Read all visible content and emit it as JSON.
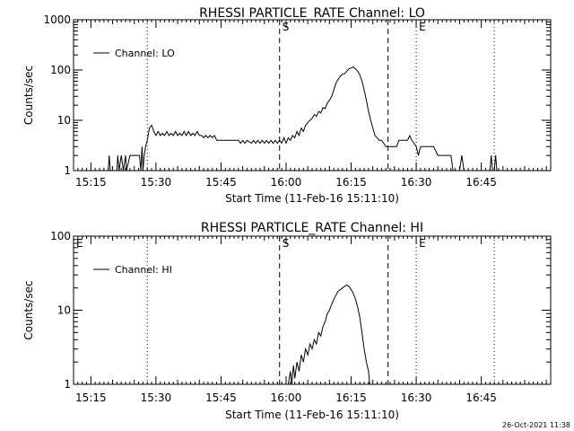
{
  "timestamp": "26-Oct-2021 11:38",
  "chart_data": [
    {
      "type": "line",
      "title": "RHESSI PARTICLE_RATE Channel: LO",
      "xlabel": "Start Time (11-Feb-16 15:11:10)",
      "ylabel": "Counts/sec",
      "yscale": "log",
      "ylim": [
        1,
        1000
      ],
      "yticks": [
        "1",
        "10",
        "100",
        "1000"
      ],
      "xlim_min": [
        0,
        110
      ],
      "xticks": [
        {
          "min": 4,
          "label": "15:15"
        },
        {
          "min": 19,
          "label": "15:30"
        },
        {
          "min": 34,
          "label": "15:45"
        },
        {
          "min": 49,
          "label": "16:00"
        },
        {
          "min": 64,
          "label": "16:15"
        },
        {
          "min": 79,
          "label": "16:30"
        },
        {
          "min": 94,
          "label": "16:45"
        }
      ],
      "markers": [
        {
          "min": 17,
          "style": "dotted",
          "label": ""
        },
        {
          "min": 47.5,
          "style": "dashed",
          "label": "S"
        },
        {
          "min": 72.5,
          "style": "dashed",
          "label": ""
        },
        {
          "min": 79,
          "style": "dotted",
          "label": "E"
        },
        {
          "min": 97,
          "style": "dotted",
          "label": ""
        }
      ],
      "legend": "Channel: LO",
      "grid": false,
      "series": [
        {
          "name": "Channel: LO",
          "points": [
            [
              8,
              1
            ],
            [
              8.2,
              2
            ],
            [
              8.5,
              1
            ],
            [
              10,
              1
            ],
            [
              10.2,
              2
            ],
            [
              10.5,
              1
            ],
            [
              11,
              2
            ],
            [
              11.5,
              1
            ],
            [
              12,
              2
            ],
            [
              12.2,
              1
            ],
            [
              13,
              2
            ],
            [
              14.5,
              2
            ],
            [
              15.2,
              2
            ],
            [
              15.5,
              1
            ],
            [
              15.8,
              3
            ],
            [
              16,
              1
            ],
            [
              16.3,
              2
            ],
            [
              16.6,
              3
            ],
            [
              17,
              4
            ],
            [
              17.5,
              7
            ],
            [
              18,
              8
            ],
            [
              18.5,
              6
            ],
            [
              19,
              5
            ],
            [
              19.5,
              6
            ],
            [
              20,
              5
            ],
            [
              20.5,
              5.5
            ],
            [
              21,
              5
            ],
            [
              21.5,
              6
            ],
            [
              22,
              5
            ],
            [
              22.5,
              5.5
            ],
            [
              23,
              5
            ],
            [
              23.5,
              6
            ],
            [
              24,
              5
            ],
            [
              24.5,
              5.5
            ],
            [
              25,
              5
            ],
            [
              25.5,
              6
            ],
            [
              26,
              5
            ],
            [
              26.5,
              6
            ],
            [
              27,
              5
            ],
            [
              27.5,
              5.5
            ],
            [
              28,
              5
            ],
            [
              28.5,
              6
            ],
            [
              29,
              5
            ],
            [
              29.5,
              5
            ],
            [
              30,
              4.5
            ],
            [
              30.5,
              5
            ],
            [
              31,
              4.5
            ],
            [
              31.5,
              5
            ],
            [
              32,
              4.5
            ],
            [
              32.5,
              5
            ],
            [
              33,
              4
            ],
            [
              34,
              4
            ],
            [
              35,
              4
            ],
            [
              36,
              4
            ],
            [
              37,
              4
            ],
            [
              38,
              4
            ],
            [
              38.5,
              3.5
            ],
            [
              39,
              4
            ],
            [
              39.5,
              3.5
            ],
            [
              40,
              4
            ],
            [
              41,
              3.5
            ],
            [
              41.5,
              4
            ],
            [
              42,
              3.5
            ],
            [
              42.5,
              4
            ],
            [
              43,
              3.5
            ],
            [
              43.5,
              4
            ],
            [
              44,
              3.5
            ],
            [
              44.5,
              4
            ],
            [
              45,
              3.5
            ],
            [
              45.5,
              4
            ],
            [
              46,
              3.5
            ],
            [
              46.5,
              4
            ],
            [
              47,
              3.5
            ],
            [
              47.5,
              4
            ],
            [
              48,
              3.5
            ],
            [
              48.5,
              4.5
            ],
            [
              49,
              3.5
            ],
            [
              49.5,
              4.5
            ],
            [
              50,
              4
            ],
            [
              50.5,
              5
            ],
            [
              51,
              4.5
            ],
            [
              51.5,
              6
            ],
            [
              52,
              5
            ],
            [
              52.5,
              7
            ],
            [
              53,
              6
            ],
            [
              53.5,
              8
            ],
            [
              54,
              9
            ],
            [
              54.5,
              10
            ],
            [
              55,
              11
            ],
            [
              55.5,
              13
            ],
            [
              56,
              12
            ],
            [
              56.5,
              15
            ],
            [
              57,
              14
            ],
            [
              57.5,
              18
            ],
            [
              58,
              17
            ],
            [
              58.5,
              22
            ],
            [
              59,
              25
            ],
            [
              59.5,
              30
            ],
            [
              60,
              40
            ],
            [
              60.5,
              55
            ],
            [
              61,
              65
            ],
            [
              61.5,
              75
            ],
            [
              62,
              82
            ],
            [
              62.5,
              85
            ],
            [
              63,
              95
            ],
            [
              63.5,
              105
            ],
            [
              64,
              110
            ],
            [
              64.5,
              115
            ],
            [
              65,
              105
            ],
            [
              65.5,
              95
            ],
            [
              66,
              80
            ],
            [
              66.5,
              60
            ],
            [
              67,
              40
            ],
            [
              67.5,
              25
            ],
            [
              68,
              15
            ],
            [
              68.5,
              10
            ],
            [
              69,
              7
            ],
            [
              69.5,
              5
            ],
            [
              70,
              4.5
            ],
            [
              70.5,
              4
            ],
            [
              71,
              4
            ],
            [
              71.5,
              3.5
            ],
            [
              72,
              3
            ],
            [
              73,
              3
            ],
            [
              74,
              3
            ],
            [
              74.5,
              3
            ],
            [
              75,
              4
            ],
            [
              76,
              4
            ],
            [
              77,
              4
            ],
            [
              77.5,
              5
            ],
            [
              78,
              4
            ],
            [
              78.5,
              3.5
            ],
            [
              79,
              3
            ],
            [
              79.5,
              2
            ],
            [
              80,
              3
            ],
            [
              81,
              3
            ],
            [
              82,
              3
            ],
            [
              83,
              3
            ],
            [
              84,
              2
            ],
            [
              85,
              2
            ],
            [
              86,
              2
            ],
            [
              87,
              2
            ],
            [
              87.5,
              1
            ],
            [
              88,
              1
            ],
            [
              89,
              1
            ],
            [
              89.5,
              2
            ],
            [
              90,
              1
            ],
            [
              96,
              1
            ],
            [
              96.3,
              2
            ],
            [
              96.6,
              1
            ],
            [
              97,
              1
            ],
            [
              97.3,
              2
            ],
            [
              97.6,
              1
            ]
          ]
        }
      ]
    },
    {
      "type": "line",
      "title": "RHESSI PARTICLE_RATE Channel: HI",
      "xlabel": "Start Time (11-Feb-16 15:11:10)",
      "ylabel": "Counts/sec",
      "yscale": "log",
      "ylim": [
        1,
        100
      ],
      "yticks": [
        "1",
        "10",
        "100"
      ],
      "xlim_min": [
        0,
        110
      ],
      "xticks": [
        {
          "min": 4,
          "label": "15:15"
        },
        {
          "min": 19,
          "label": "15:30"
        },
        {
          "min": 34,
          "label": "15:45"
        },
        {
          "min": 49,
          "label": "16:00"
        },
        {
          "min": 64,
          "label": "16:15"
        },
        {
          "min": 79,
          "label": "16:30"
        },
        {
          "min": 94,
          "label": "16:45"
        }
      ],
      "markers": [
        {
          "min": 0,
          "style": "none",
          "label": "E"
        },
        {
          "min": 17,
          "style": "dotted",
          "label": ""
        },
        {
          "min": 47.5,
          "style": "dashed",
          "label": "S"
        },
        {
          "min": 72.5,
          "style": "dashed",
          "label": ""
        },
        {
          "min": 79,
          "style": "dotted",
          "label": "E"
        },
        {
          "min": 97,
          "style": "dotted",
          "label": ""
        }
      ],
      "legend": "Channel: HI",
      "grid": false,
      "series": [
        {
          "name": "Channel: HI",
          "points": [
            [
              49.5,
              1
            ],
            [
              50,
              1.5
            ],
            [
              50.3,
              1
            ],
            [
              50.7,
              1.8
            ],
            [
              51,
              1.2
            ],
            [
              51.5,
              2
            ],
            [
              52,
              1.5
            ],
            [
              52.5,
              2.5
            ],
            [
              53,
              2
            ],
            [
              53.5,
              3
            ],
            [
              54,
              2.5
            ],
            [
              54.5,
              3.5
            ],
            [
              55,
              3
            ],
            [
              55.5,
              4
            ],
            [
              56,
              3.5
            ],
            [
              56.5,
              5
            ],
            [
              57,
              4.5
            ],
            [
              57.5,
              6
            ],
            [
              58,
              7
            ],
            [
              58.5,
              9
            ],
            [
              59,
              10
            ],
            [
              59.5,
              12
            ],
            [
              60,
              14
            ],
            [
              60.5,
              16
            ],
            [
              61,
              18
            ],
            [
              61.5,
              19
            ],
            [
              62,
              20
            ],
            [
              62.5,
              21
            ],
            [
              63,
              22
            ],
            [
              63.5,
              21
            ],
            [
              64,
              19
            ],
            [
              64.5,
              17
            ],
            [
              65,
              14
            ],
            [
              65.5,
              11
            ],
            [
              66,
              8
            ],
            [
              66.5,
              5
            ],
            [
              67,
              3
            ],
            [
              67.5,
              2
            ],
            [
              68,
              1.5
            ],
            [
              68.3,
              1
            ]
          ]
        }
      ]
    }
  ]
}
